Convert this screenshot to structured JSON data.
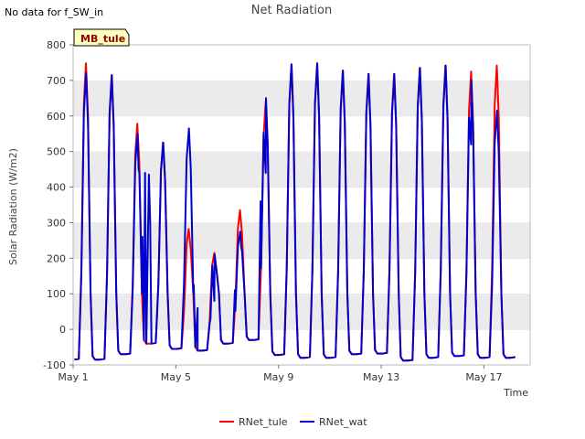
{
  "note": "No data for f_SW_in",
  "chart_data": {
    "type": "line",
    "title": "Net Radiation",
    "xlabel": "Time",
    "ylabel": "Solar Radiation (W/m2)",
    "ylim": [
      -100,
      800
    ],
    "xlim": [
      1.0,
      18.8
    ],
    "yticks": [
      -100,
      0,
      100,
      200,
      300,
      400,
      500,
      600,
      700,
      800
    ],
    "xticks": [
      {
        "value": 1,
        "label": "May 1"
      },
      {
        "value": 5,
        "label": "May 5"
      },
      {
        "value": 9,
        "label": "May 9"
      },
      {
        "value": 13,
        "label": "May 13"
      },
      {
        "value": 17,
        "label": "May 17"
      }
    ],
    "site_label": "MB_tule",
    "legend": [
      "RNet_tule",
      "RNet_wat"
    ],
    "colors": {
      "RNet_tule": "#ff0000",
      "RNet_wat": "#0000cc",
      "band": "#ebebeb",
      "site_box": "#ffffc0"
    },
    "days": [
      {
        "day": 1,
        "peak_tule": 748,
        "peak_wat": 720,
        "night": -85
      },
      {
        "day": 2,
        "peak_tule": 715,
        "peak_wat": 715,
        "night": -85
      },
      {
        "day": 3,
        "peak_tule": 578,
        "peak_wat": 550,
        "night": -70,
        "extra": [
          [
            3.55,
            450
          ],
          [
            3.7,
            260
          ],
          [
            3.8,
            440
          ]
        ]
      },
      {
        "day": 4,
        "peak_tule": 525,
        "peak_wat": 525,
        "night": -40,
        "extra": [
          [
            3.95,
            435
          ],
          [
            4.0,
            300
          ]
        ]
      },
      {
        "day": 5,
        "peak_tule": 282,
        "peak_wat": 565,
        "night": -55,
        "extra": [
          [
            5.7,
            125
          ],
          [
            5.85,
            60
          ]
        ]
      },
      {
        "day": 6,
        "peak_tule": 215,
        "peak_wat": 210,
        "night": -60,
        "extra": [
          [
            6.35,
            30
          ],
          [
            6.5,
            80
          ]
        ]
      },
      {
        "day": 7,
        "peak_tule": 335,
        "peak_wat": 275,
        "night": -40,
        "extra": [
          [
            7.3,
            110
          ],
          [
            7.55,
            230
          ]
        ]
      },
      {
        "day": 8,
        "peak_tule": 640,
        "peak_wat": 650,
        "night": -30,
        "extra": [
          [
            8.3,
            360
          ],
          [
            8.5,
            440
          ]
        ]
      },
      {
        "day": 9,
        "peak_tule": 745,
        "peak_wat": 745,
        "night": -72
      },
      {
        "day": 10,
        "peak_tule": 748,
        "peak_wat": 748,
        "night": -80
      },
      {
        "day": 11,
        "peak_tule": 725,
        "peak_wat": 728,
        "night": -80
      },
      {
        "day": 12,
        "peak_tule": 718,
        "peak_wat": 718,
        "night": -70
      },
      {
        "day": 13,
        "peak_tule": 718,
        "peak_wat": 718,
        "night": -68
      },
      {
        "day": 14,
        "peak_tule": 735,
        "peak_wat": 735,
        "night": -88
      },
      {
        "day": 15,
        "peak_tule": 742,
        "peak_wat": 742,
        "night": -80
      },
      {
        "day": 16,
        "peak_tule": 725,
        "peak_wat": 700,
        "night": -75,
        "extra": [
          [
            16.5,
            520
          ]
        ]
      },
      {
        "day": 17,
        "peak_tule": 742,
        "peak_wat": 615,
        "night": -80
      },
      {
        "day": 18,
        "peak_tule": -78,
        "peak_wat": -82,
        "night": -80
      }
    ]
  }
}
